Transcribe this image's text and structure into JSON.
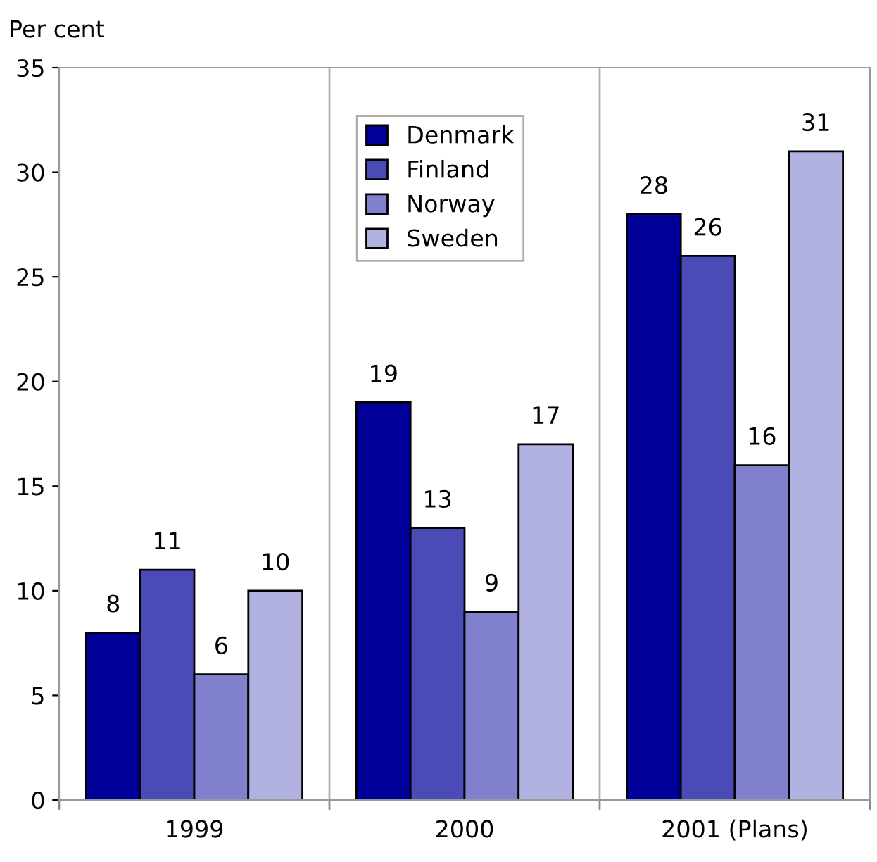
{
  "chart_data": {
    "type": "bar",
    "ylabel": "Per cent",
    "categories": [
      "1999",
      "2000",
      "2001 (Plans)"
    ],
    "series": [
      {
        "name": "Denmark",
        "color": "#000099",
        "values": [
          8,
          19,
          28
        ]
      },
      {
        "name": "Finland",
        "color": "#4b4bb8",
        "values": [
          11,
          13,
          26
        ]
      },
      {
        "name": "Norway",
        "color": "#8080cc",
        "values": [
          6,
          9,
          16
        ]
      },
      {
        "name": "Sweden",
        "color": "#b2b2e2",
        "values": [
          10,
          17,
          31
        ]
      }
    ],
    "ylim": [
      0,
      35
    ],
    "yticks": [
      0,
      5,
      10,
      15,
      20,
      25,
      30,
      35
    ],
    "grid": "x",
    "legend": "top",
    "data_labels": true
  }
}
